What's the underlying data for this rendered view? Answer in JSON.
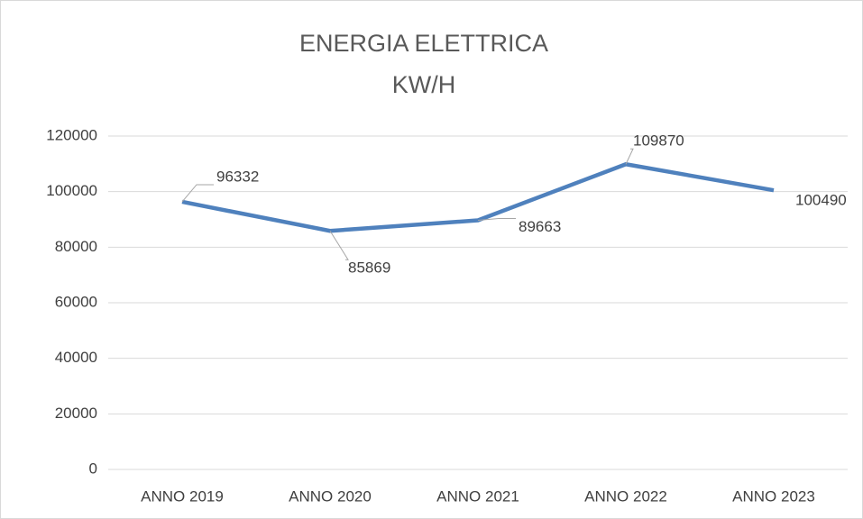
{
  "chart_data": {
    "type": "line",
    "title": "ENERGIA ELETTRICA",
    "subtitle": "KW/H",
    "categories": [
      "ANNO 2019",
      "ANNO 2020",
      "ANNO 2021",
      "ANNO 2022",
      "ANNO 2023"
    ],
    "series": [
      {
        "name": "KW/H",
        "color": "#4f81bd",
        "values": [
          96332,
          85869,
          89663,
          109870,
          100490
        ]
      }
    ],
    "ylim": [
      0,
      120000
    ],
    "yticks": [
      0,
      20000,
      40000,
      60000,
      80000,
      100000,
      120000
    ],
    "grid": true
  }
}
